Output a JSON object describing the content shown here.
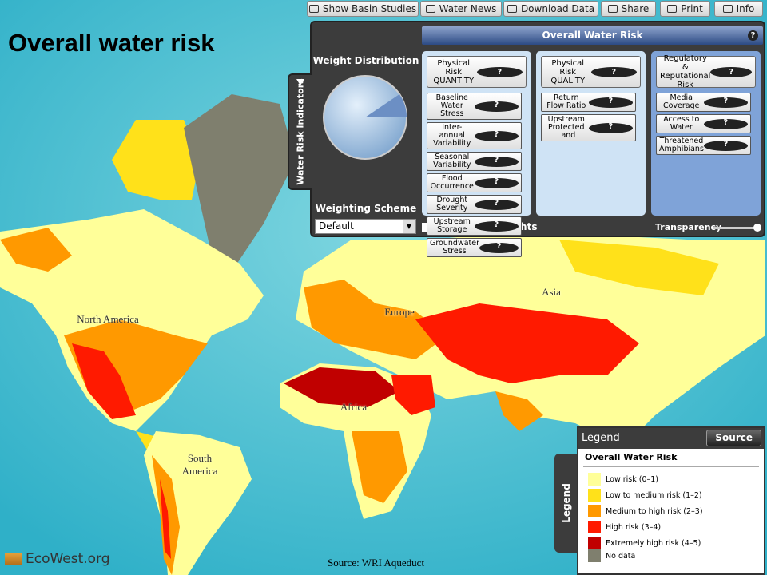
{
  "toolbar": {
    "buttons": [
      "Show Basin Studies",
      "Water News",
      "Download Data",
      "Share",
      "Print",
      "Info"
    ]
  },
  "title": "Overall water risk",
  "panel": {
    "header": "Overall Water Risk",
    "help": "?",
    "side_tab": "Water Risk Indicators",
    "weight_distribution": "Weight Distribution",
    "weighting_scheme": "Weighting Scheme",
    "scheme_value": "Default",
    "customize": "Customize Weights",
    "transparency": "Transparency",
    "groups": [
      {
        "title": "Physical Risk QUANTITY",
        "items": [
          "Baseline Water Stress",
          "Inter-annual Variability",
          "Seasonal Variability",
          "Flood Occurrence",
          "Drought Severity",
          "Upstream Storage",
          "Groundwater Stress"
        ]
      },
      {
        "title": "Physical Risk QUALITY",
        "items": [
          "Return Flow Ratio",
          "Upstream Protected Land"
        ]
      },
      {
        "title": "Regulatory & Reputational Risk",
        "items": [
          "Media Coverage",
          "Access to Water",
          "Threatened Amphibians"
        ]
      }
    ]
  },
  "map_labels": [
    "North America",
    "Europe",
    "Asia",
    "Africa",
    "South America"
  ],
  "source": "Source: WRI Aqueduct",
  "logo": "EcoWest.org",
  "legend": {
    "header": "Legend",
    "source_button": "Source",
    "side_tab": "Legend",
    "title": "Overall Water Risk",
    "items": [
      {
        "label": "Low risk (0–1)",
        "color": "#ffff99"
      },
      {
        "label": "Low to medium risk (1–2)",
        "color": "#ffe11a"
      },
      {
        "label": "Medium to high risk (2–3)",
        "color": "#ff9900"
      },
      {
        "label": "High risk (3–4)",
        "color": "#ff1a00"
      },
      {
        "label": "Extremely high risk (4–5)",
        "color": "#c00000"
      }
    ],
    "no_data": {
      "label": "No data",
      "color": "#7f7f6e"
    }
  }
}
